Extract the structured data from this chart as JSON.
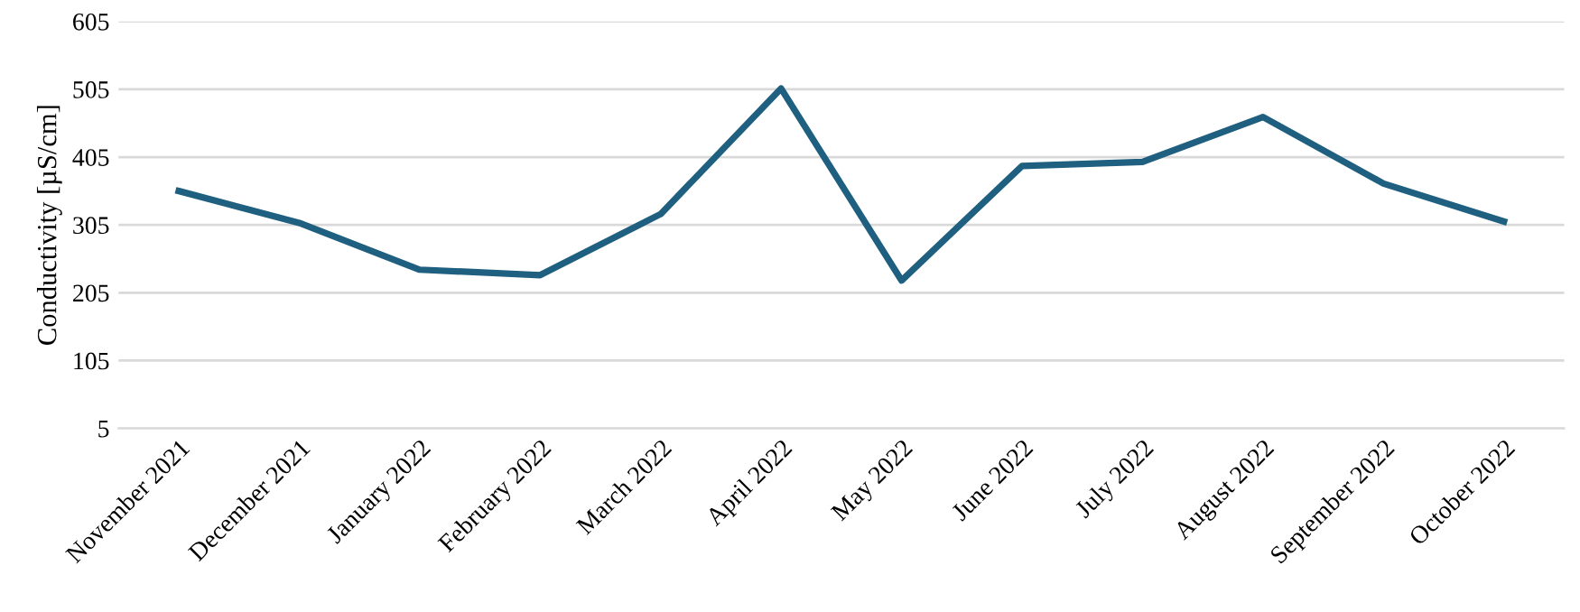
{
  "chart_data": {
    "type": "line",
    "ylabel": "Conductivity [µS/cm]",
    "categories": [
      "November 2021",
      "December 2021",
      "January 2022",
      "February 2022",
      "March 2022",
      "April 2022",
      "May 2022",
      "June 2022",
      "July 2022",
      "August 2022",
      "September 2022",
      "October 2022"
    ],
    "series": [
      {
        "color": "#1f5f7f",
        "values": [
          355,
          308,
          239,
          231,
          321,
          506,
          223,
          392,
          398,
          464,
          366,
          310
        ]
      }
    ],
    "ylim": [
      5,
      605
    ],
    "yticks": [
      5,
      105,
      205,
      305,
      405,
      505,
      605
    ],
    "grid": "y",
    "marker": "none",
    "line_style": "solid"
  }
}
